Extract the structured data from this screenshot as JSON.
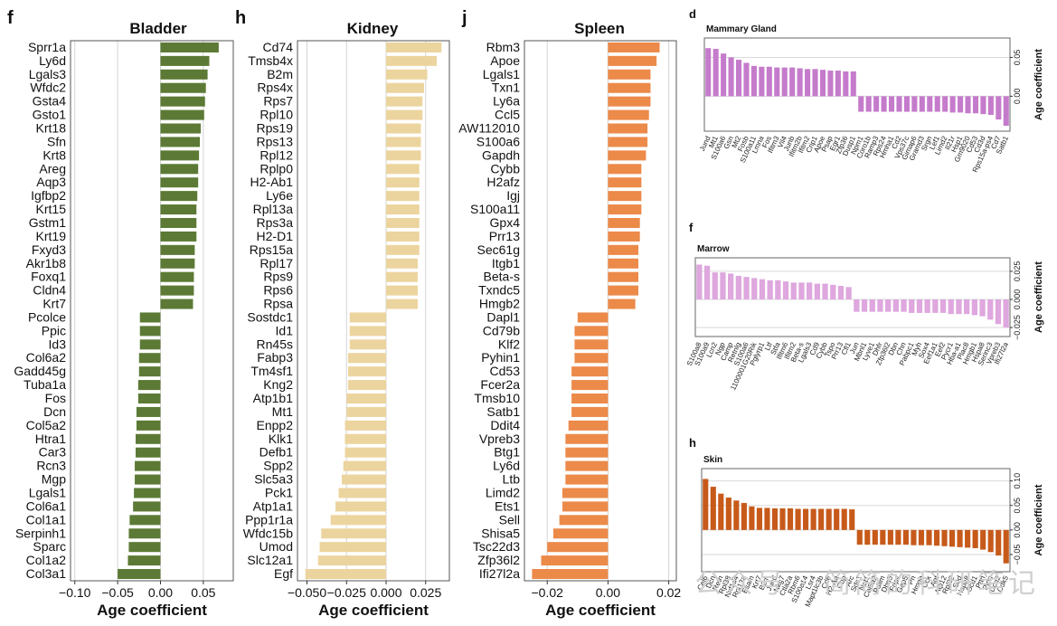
{
  "watermark": "公众号 · 简简的科研笔记",
  "chart_data": [
    {
      "id": "bladder",
      "letter": "f",
      "type": "bar",
      "orientation": "horizontal",
      "title": "Bladder",
      "xlabel": "Age coefficient",
      "color": "#5c7a35",
      "xlim": [
        -0.105,
        0.085
      ],
      "ticks": [
        -0.1,
        -0.05,
        0.0,
        0.05
      ],
      "tick_labels": [
        "−0.10",
        "−0.05",
        "0.00",
        "0.05"
      ],
      "categories": [
        "Sprr1a",
        "Ly6d",
        "Lgals3",
        "Wfdc2",
        "Gsta4",
        "Gsto1",
        "Krt18",
        "Sfn",
        "Krt8",
        "Areg",
        "Aqp3",
        "Igfbp2",
        "Krt15",
        "Gstm1",
        "Krt19",
        "Fxyd3",
        "Akr1b8",
        "Foxq1",
        "Cldn4",
        "Krt7",
        "Pcolce",
        "Ppic",
        "Id3",
        "Col6a2",
        "Gadd45g",
        "Tuba1a",
        "Fos",
        "Dcn",
        "Col5a2",
        "Htra1",
        "Car3",
        "Rcn3",
        "Mgp",
        "Lgals1",
        "Col6a1",
        "Col1a1",
        "Serpinh1",
        "Sparc",
        "Col1a2",
        "Col3a1"
      ],
      "values": [
        0.068,
        0.057,
        0.055,
        0.053,
        0.052,
        0.051,
        0.047,
        0.046,
        0.045,
        0.044,
        0.044,
        0.043,
        0.042,
        0.042,
        0.042,
        0.04,
        0.04,
        0.039,
        0.039,
        0.038,
        -0.024,
        -0.024,
        -0.024,
        -0.025,
        -0.025,
        -0.026,
        -0.026,
        -0.028,
        -0.028,
        -0.029,
        -0.029,
        -0.03,
        -0.03,
        -0.031,
        -0.032,
        -0.036,
        -0.037,
        -0.037,
        -0.038,
        -0.05
      ]
    },
    {
      "id": "kidney",
      "letter": "h",
      "type": "bar",
      "orientation": "horizontal",
      "title": "Kidney",
      "xlabel": "Age coefficient",
      "color": "#ecd49e",
      "xlim": [
        -0.056,
        0.04
      ],
      "ticks": [
        -0.05,
        -0.025,
        0.0,
        0.025
      ],
      "tick_labels": [
        "−0.050",
        "−0.025",
        "0.000",
        "0.025"
      ],
      "categories": [
        "Cd74",
        "Tmsb4x",
        "B2m",
        "Rps4x",
        "Rps7",
        "Rpl10",
        "Rps19",
        "Rps13",
        "Rpl12",
        "Rplp0",
        "H2-Ab1",
        "Ly6e",
        "Rpl13a",
        "Rps3a",
        "H2-D1",
        "Rps15a",
        "Rpl17",
        "Rps9",
        "Rps6",
        "Rpsa",
        "Sostdc1",
        "Id1",
        "Rn45s",
        "Fabp3",
        "Tm4sf1",
        "Kng2",
        "Atp1b1",
        "Mt1",
        "Enpp2",
        "Klk1",
        "Defb1",
        "Spp2",
        "Slc5a3",
        "Pck1",
        "Atp1a1",
        "Ppp1r1a",
        "Wfdc15b",
        "Umod",
        "Slc12a1",
        "Egf"
      ],
      "values": [
        0.035,
        0.032,
        0.026,
        0.024,
        0.023,
        0.023,
        0.022,
        0.022,
        0.022,
        0.021,
        0.021,
        0.021,
        0.021,
        0.021,
        0.021,
        0.021,
        0.02,
        0.02,
        0.02,
        0.02,
        -0.023,
        -0.023,
        -0.023,
        -0.024,
        -0.024,
        -0.024,
        -0.025,
        -0.025,
        -0.026,
        -0.026,
        -0.026,
        -0.027,
        -0.028,
        -0.03,
        -0.032,
        -0.035,
        -0.041,
        -0.042,
        -0.043,
        -0.051
      ]
    },
    {
      "id": "spleen",
      "letter": "j",
      "type": "bar",
      "orientation": "horizontal",
      "title": "Spleen",
      "xlabel": "Age coefficient",
      "color": "#ec8a4a",
      "xlim": [
        -0.0275,
        0.0225
      ],
      "ticks": [
        -0.02,
        0.0,
        0.02
      ],
      "tick_labels": [
        "−0.02",
        "0.00",
        "0.02"
      ],
      "categories": [
        "Rbm3",
        "Apoe",
        "Lgals1",
        "Txn1",
        "Ly6a",
        "Ccl5",
        "AW112010",
        "S100a6",
        "Gapdh",
        "Cybb",
        "H2afz",
        "Igj",
        "S100a11",
        "Gpx4",
        "Prr13",
        "Sec61g",
        "Itgb1",
        "Beta-s",
        "Txndc5",
        "Hmgb2",
        "Dapl1",
        "Cd79b",
        "Klf2",
        "Pyhin1",
        "Cd53",
        "Fcer2a",
        "Tmsb10",
        "Satb1",
        "Ddit4",
        "Vpreb3",
        "Btg1",
        "Ly6d",
        "Ltb",
        "Limd2",
        "Ets1",
        "Sell",
        "Shisa5",
        "Tsc22d3",
        "Zfp36l2",
        "Ifi27l2a"
      ],
      "values": [
        0.017,
        0.016,
        0.014,
        0.014,
        0.014,
        0.0135,
        0.013,
        0.013,
        0.0125,
        0.011,
        0.011,
        0.011,
        0.011,
        0.0105,
        0.0105,
        0.01,
        0.01,
        0.01,
        0.01,
        0.009,
        -0.01,
        -0.011,
        -0.011,
        -0.011,
        -0.012,
        -0.012,
        -0.012,
        -0.012,
        -0.013,
        -0.014,
        -0.014,
        -0.014,
        -0.014,
        -0.015,
        -0.015,
        -0.016,
        -0.018,
        -0.02,
        -0.022,
        -0.025
      ]
    },
    {
      "id": "mammary",
      "letter": "d",
      "type": "bar",
      "orientation": "vertical",
      "title": "Mammary Gland",
      "ylabel": "Age coefficient",
      "color": "#c57bcb",
      "ylim": [
        -0.045,
        0.075
      ],
      "ticks": [
        0.0,
        0.05
      ],
      "tick_labels": [
        "0.00",
        "0.05"
      ],
      "categories": [
        "Jund",
        "Mt1",
        "S100a6",
        "Gsn",
        "Mt2",
        "Fosb",
        "S100a11",
        "Lmna",
        "Fos",
        "Ifitm3",
        "Vil4",
        "Junb",
        "Ifitm2b",
        "Ifitm2",
        "Crip1",
        "Apoe",
        "Psap",
        "Egr1",
        "Zfp36",
        "Dusp1",
        "Npm1",
        "Coro1b",
        "Ramp3",
        "Rps24",
        "Hmha1",
        "Cd2",
        "Vps37c",
        "Gimap6",
        "Gramd3",
        "Srgn",
        "Lef1",
        "Limd2",
        "Il21r",
        "Hsp1",
        "Gm9020",
        "Cd53",
        "Cd3d",
        "Rps15a-ps4",
        "Cd7",
        "Satb1"
      ],
      "values": [
        0.062,
        0.061,
        0.055,
        0.05,
        0.047,
        0.043,
        0.039,
        0.038,
        0.038,
        0.037,
        0.037,
        0.037,
        0.036,
        0.035,
        0.035,
        0.034,
        0.033,
        0.033,
        0.032,
        0.032,
        -0.02,
        -0.02,
        -0.02,
        -0.02,
        -0.02,
        -0.02,
        -0.02,
        -0.02,
        -0.02,
        -0.02,
        -0.02,
        -0.02,
        -0.021,
        -0.021,
        -0.022,
        -0.022,
        -0.023,
        -0.024,
        -0.03,
        -0.038
      ]
    },
    {
      "id": "marrow",
      "letter": "f",
      "type": "bar",
      "orientation": "vertical",
      "title": "Marrow",
      "ylabel": "Age coefficient",
      "color": "#dea7de",
      "ylim": [
        -0.033,
        0.037
      ],
      "ticks": [
        -0.025,
        0.0,
        0.025
      ],
      "tick_labels": [
        "−0.025",
        "0.000",
        "0.025"
      ],
      "categories": [
        "S100a8",
        "S100a9",
        "Lcn2",
        "Ngp",
        "Camp",
        "Retnlg",
        "S100a6",
        "1100001G20Rik",
        "Pglyrp1",
        "Ltf",
        "Stfa",
        "Ifitm6",
        "Ifitm2",
        "Beta-s",
        "Lgals3",
        "Cd9",
        "Cybb",
        "Tspo",
        "Prr13",
        "Cfl1",
        "Jun",
        "Mbnl1",
        "Lyve1",
        "Dhfr",
        "Zfp36l2",
        "Dbn",
        "Chn",
        "Pabpc1",
        "Myh",
        "Sox4",
        "Eef1a1",
        "Eef2",
        "Pycr1",
        "Hba-a1",
        "Plac8",
        "Hmgb1",
        "Hspa8",
        "Serinc3",
        "Vpreb3",
        "Ifi27l2a"
      ],
      "values": [
        0.031,
        0.03,
        0.024,
        0.024,
        0.023,
        0.021,
        0.02,
        0.019,
        0.018,
        0.017,
        0.017,
        0.016,
        0.015,
        0.015,
        0.015,
        0.014,
        0.014,
        0.013,
        0.012,
        0.011,
        -0.011,
        -0.011,
        -0.011,
        -0.011,
        -0.011,
        -0.011,
        -0.011,
        -0.012,
        -0.012,
        -0.012,
        -0.012,
        -0.012,
        -0.013,
        -0.013,
        -0.013,
        -0.014,
        -0.015,
        -0.018,
        -0.022,
        -0.025
      ]
    },
    {
      "id": "skin",
      "letter": "h",
      "type": "bar",
      "orientation": "vertical",
      "title": "Skin",
      "ylabel": "Age coefficient",
      "color": "#c75a1a",
      "ylim": [
        -0.085,
        0.125
      ],
      "ticks": [
        -0.05,
        0.0,
        0.05,
        0.1
      ],
      "tick_labels": [
        "−0.05",
        "0.00",
        "0.05",
        "0.10"
      ],
      "categories": [
        "Cel6",
        "Dcn",
        "Retn",
        "Rpl38",
        "Nxf1d4",
        "Rpl13a",
        "Esam",
        "Krt7",
        "B2m",
        "Jund",
        "Nkg7",
        "Ctla2a",
        "Rbm6",
        "S100a14",
        "Lsr4",
        "Mapt1lc3b",
        "Cd6",
        "H2-Aa",
        "Cbp",
        "Arc",
        "Sdc1",
        "Net1",
        "Col5a2",
        "Pdlim",
        "Dbn5",
        "Fdps",
        "Gap5",
        "Pn",
        "Hmgb",
        "Cck",
        "Agt",
        "Atp12",
        "Rpl32",
        "Sod",
        "Hspa8",
        "Scd1",
        "Pttn",
        "Ptpn",
        "Dcn2",
        "Cdk5"
      ],
      "values": [
        0.104,
        0.088,
        0.074,
        0.066,
        0.06,
        0.055,
        0.048,
        0.045,
        0.045,
        0.044,
        0.044,
        0.044,
        0.043,
        0.043,
        0.043,
        0.043,
        0.043,
        0.043,
        0.043,
        0.042,
        -0.03,
        -0.03,
        -0.03,
        -0.03,
        -0.03,
        -0.03,
        -0.03,
        -0.031,
        -0.031,
        -0.031,
        -0.032,
        -0.033,
        -0.034,
        -0.035,
        -0.036,
        -0.037,
        -0.04,
        -0.045,
        -0.052,
        -0.068
      ]
    }
  ]
}
